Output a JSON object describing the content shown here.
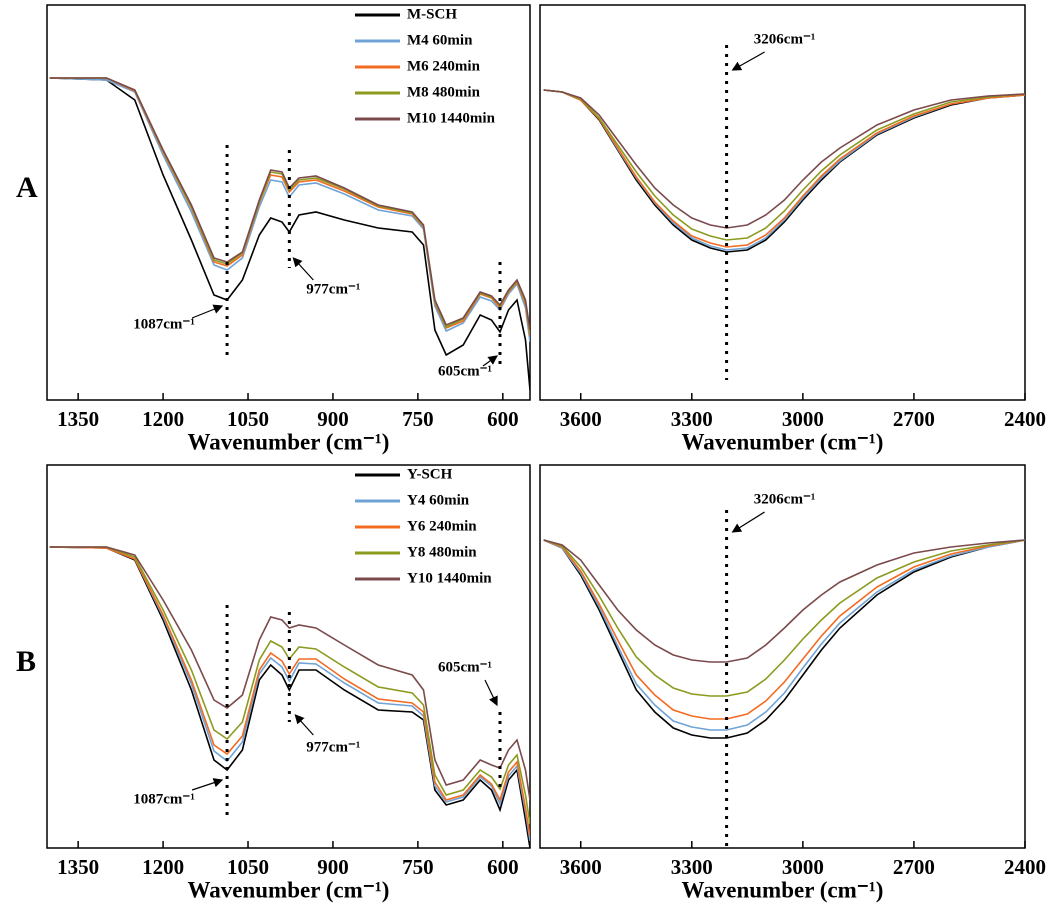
{
  "panel_labels": [
    "A",
    "B"
  ],
  "chart_data": [
    {
      "type": "line",
      "xlabel": "Wavenumber (cm⁻¹)",
      "xlim": [
        1405,
        552
      ],
      "ylim": [
        0,
        395
      ],
      "xticks": [
        1350,
        1200,
        1050,
        900,
        750,
        600
      ],
      "legend": "upper right",
      "x": [
        1400,
        1300,
        1250,
        1200,
        1150,
        1110,
        1087,
        1060,
        1030,
        1010,
        990,
        977,
        960,
        930,
        880,
        820,
        760,
        740,
        720,
        700,
        670,
        640,
        620,
        605,
        590,
        575,
        560,
        552
      ],
      "series": [
        {
          "name": "M-SCH",
          "color": "#000000",
          "values": [
            322,
            320,
            300,
            225,
            160,
            105,
            100,
            120,
            165,
            182,
            178,
            168,
            185,
            188,
            180,
            172,
            168,
            155,
            70,
            45,
            55,
            85,
            80,
            68,
            90,
            100,
            60,
            10
          ]
        },
        {
          "name": "M4 60min",
          "color": "#6fa3d6",
          "values": [
            322,
            320,
            308,
            245,
            188,
            135,
            130,
            142,
            193,
            220,
            218,
            203,
            215,
            217,
            206,
            190,
            184,
            171,
            94,
            69,
            77,
            103,
            99,
            90,
            106,
            116,
            92,
            58
          ]
        },
        {
          "name": "M6 240min",
          "color": "#f26b21",
          "values": [
            322,
            322,
            309,
            248,
            192,
            138,
            134,
            145,
            197,
            225,
            223,
            208,
            218,
            220,
            209,
            193,
            186,
            173,
            97,
            72,
            79,
            106,
            102,
            92,
            108,
            118,
            96,
            64
          ]
        },
        {
          "name": "M8 480min",
          "color": "#8c9a1e",
          "values": [
            322,
            322,
            310,
            249,
            193,
            140,
            136,
            147,
            198,
            228,
            226,
            210,
            220,
            222,
            211,
            194,
            187,
            174,
            98,
            73,
            81,
            107,
            103,
            94,
            109,
            119,
            98,
            67
          ]
        },
        {
          "name": "M10 1440min",
          "color": "#7b4a4c",
          "values": [
            322,
            322,
            310,
            250,
            195,
            142,
            138,
            148,
            200,
            230,
            228,
            212,
            222,
            224,
            212,
            195,
            188,
            175,
            100,
            75,
            82,
            108,
            104,
            95,
            110,
            120,
            100,
            70
          ]
        }
      ],
      "annotations": [
        {
          "text": "1087cm⁻¹",
          "x": 1087
        },
        {
          "text": "977cm⁻¹",
          "x": 977
        },
        {
          "text": "605cm⁻¹",
          "x": 605
        }
      ]
    },
    {
      "type": "line",
      "xlabel": "Wavenumber (cm⁻¹)",
      "xlim": [
        3710,
        2400
      ],
      "ylim": [
        0,
        395
      ],
      "xticks": [
        3600,
        3300,
        3000,
        2700,
        2400
      ],
      "x": [
        3700,
        3650,
        3600,
        3550,
        3500,
        3450,
        3400,
        3350,
        3300,
        3250,
        3206,
        3150,
        3100,
        3050,
        3000,
        2950,
        2900,
        2800,
        2700,
        2600,
        2500,
        2400
      ],
      "series": [
        {
          "color": "#000000",
          "values": [
            310,
            308,
            300,
            280,
            250,
            220,
            195,
            175,
            160,
            152,
            148,
            150,
            160,
            178,
            200,
            220,
            238,
            265,
            282,
            295,
            302,
            305
          ]
        },
        {
          "color": "#6fa3d6",
          "values": [
            310,
            308,
            300,
            281,
            251,
            222,
            197,
            177,
            162,
            154,
            150,
            152,
            162,
            180,
            202,
            222,
            239,
            266,
            283,
            296,
            302,
            305
          ]
        },
        {
          "color": "#f26b21",
          "values": [
            310,
            308,
            300,
            281,
            252,
            223,
            198,
            179,
            164,
            157,
            153,
            155,
            165,
            182,
            204,
            224,
            241,
            267,
            284,
            296,
            302,
            305
          ]
        },
        {
          "color": "#8c9a1e",
          "values": [
            310,
            308,
            301,
            282,
            255,
            228,
            204,
            185,
            171,
            164,
            160,
            162,
            172,
            189,
            210,
            229,
            245,
            270,
            286,
            298,
            303,
            306
          ]
        },
        {
          "color": "#7b4a4c",
          "values": [
            310,
            308,
            302,
            285,
            260,
            235,
            212,
            195,
            182,
            175,
            172,
            175,
            185,
            200,
            220,
            238,
            252,
            275,
            290,
            300,
            304,
            306
          ]
        }
      ],
      "annotations": [
        {
          "text": "3206cm⁻¹",
          "x": 3206
        }
      ]
    },
    {
      "type": "line",
      "xlabel": "Wavenumber (cm⁻¹)",
      "xlim": [
        1405,
        552
      ],
      "ylim": [
        0,
        383
      ],
      "xticks": [
        1350,
        1200,
        1050,
        900,
        750,
        600
      ],
      "legend": "upper right",
      "x": [
        1400,
        1300,
        1250,
        1200,
        1150,
        1110,
        1087,
        1060,
        1030,
        1010,
        990,
        977,
        960,
        930,
        880,
        820,
        760,
        740,
        720,
        700,
        670,
        640,
        620,
        605,
        590,
        575,
        560,
        552
      ],
      "series": [
        {
          "name": "Y-SCH",
          "color": "#000000",
          "values": [
            301,
            300,
            288,
            228,
            158,
            88,
            78,
            98,
            168,
            183,
            173,
            158,
            178,
            178,
            158,
            138,
            136,
            128,
            58,
            43,
            48,
            68,
            58,
            38,
            68,
            78,
            28,
            0
          ]
        },
        {
          "name": "Y4 60min",
          "color": "#6fa3d6",
          "values": [
            301,
            300,
            289,
            231,
            164,
            97,
            87,
            106,
            174,
            190,
            181,
            167,
            185,
            184,
            165,
            145,
            142,
            132,
            62,
            46,
            51,
            71,
            62,
            44,
            72,
            82,
            36,
            7
          ]
        },
        {
          "name": "Y6 240min",
          "color": "#f26b21",
          "values": [
            301,
            300,
            289,
            233,
            168,
            103,
            94,
            112,
            178,
            195,
            187,
            174,
            189,
            189,
            169,
            149,
            145,
            136,
            66,
            48,
            53,
            73,
            64,
            48,
            76,
            86,
            40,
            12
          ]
        },
        {
          "name": "Y8 480min",
          "color": "#8c9a1e",
          "values": [
            301,
            301,
            291,
            238,
            178,
            118,
            109,
            126,
            188,
            207,
            201,
            189,
            201,
            199,
            181,
            161,
            155,
            143,
            73,
            53,
            58,
            78,
            71,
            59,
            83,
            93,
            53,
            24
          ]
        },
        {
          "name": "Y10 1440min",
          "color": "#7b4a4c",
          "values": [
            301,
            301,
            293,
            248,
            198,
            148,
            140,
            153,
            208,
            231,
            228,
            220,
            223,
            220,
            203,
            183,
            173,
            158,
            88,
            63,
            68,
            88,
            83,
            80,
            98,
            108,
            78,
            48
          ]
        }
      ],
      "annotations": [
        {
          "text": "1087cm⁻¹",
          "x": 1087
        },
        {
          "text": "977cm⁻¹",
          "x": 977
        },
        {
          "text": "605cm⁻¹",
          "x": 605
        }
      ]
    },
    {
      "type": "line",
      "xlabel": "Wavenumber (cm⁻¹)",
      "xlim": [
        3710,
        2400
      ],
      "ylim": [
        0,
        383
      ],
      "xticks": [
        3600,
        3300,
        3000,
        2700,
        2400
      ],
      "x": [
        3700,
        3650,
        3600,
        3550,
        3500,
        3450,
        3400,
        3350,
        3300,
        3250,
        3206,
        3150,
        3100,
        3050,
        3000,
        2950,
        2900,
        2800,
        2700,
        2600,
        2500,
        2400
      ],
      "series": [
        {
          "color": "#000000",
          "values": [
            308,
            300,
            273,
            238,
            198,
            158,
            136,
            120,
            113,
            110,
            110,
            115,
            128,
            148,
            173,
            198,
            220,
            253,
            276,
            291,
            301,
            308
          ]
        },
        {
          "color": "#6fa3d6",
          "values": [
            308,
            300,
            275,
            241,
            202,
            164,
            143,
            127,
            121,
            118,
            118,
            123,
            136,
            155,
            180,
            204,
            225,
            256,
            278,
            292,
            301,
            308
          ]
        },
        {
          "color": "#f26b21",
          "values": [
            308,
            301,
            277,
            244,
            208,
            173,
            153,
            138,
            132,
            129,
            129,
            134,
            147,
            166,
            189,
            212,
            232,
            261,
            281,
            294,
            302,
            308
          ]
        },
        {
          "color": "#8c9a1e",
          "values": [
            308,
            302,
            281,
            252,
            220,
            191,
            173,
            160,
            154,
            152,
            152,
            156,
            169,
            188,
            209,
            228,
            245,
            270,
            286,
            297,
            303,
            308
          ]
        },
        {
          "color": "#7b4a4c",
          "values": [
            308,
            303,
            288,
            263,
            238,
            218,
            203,
            193,
            188,
            186,
            186,
            190,
            203,
            220,
            238,
            253,
            266,
            283,
            295,
            301,
            305,
            308
          ]
        }
      ],
      "annotations": [
        {
          "text": "3206cm⁻¹",
          "x": 3206
        }
      ]
    }
  ]
}
